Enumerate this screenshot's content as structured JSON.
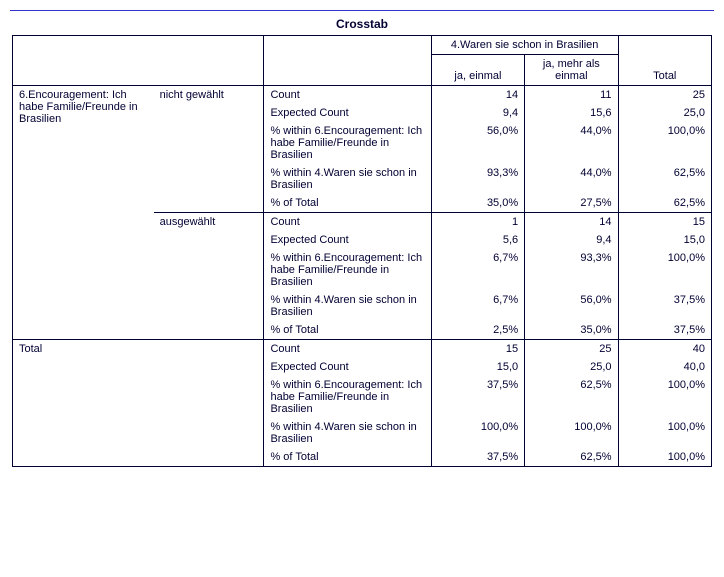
{
  "title": "Crosstab",
  "colvar": "4.Waren sie schon in Brasilien",
  "colcats": {
    "c1": "ja, einmal",
    "c2": "ja, mehr als einmal"
  },
  "totallabel": "Total",
  "rowvar": "6.Encouragement: Ich habe Familie/Freunde in Brasilien",
  "rowcats": {
    "r1": "nicht gewählt",
    "r2": "ausgewählt"
  },
  "stats": {
    "count": "Count",
    "exp": "Expected Count",
    "pwrow": "% within 6.Encouragement: Ich habe Familie/Freunde in Brasilien",
    "pwcol": "% within 4.Waren sie schon in Brasilien",
    "ptot": "% of Total"
  },
  "d": {
    "r1": {
      "count": {
        "c1": "14",
        "c2": "11",
        "t": "25"
      },
      "exp": {
        "c1": "9,4",
        "c2": "15,6",
        "t": "25,0"
      },
      "pwrow": {
        "c1": "56,0%",
        "c2": "44,0%",
        "t": "100,0%"
      },
      "pwcol": {
        "c1": "93,3%",
        "c2": "44,0%",
        "t": "62,5%"
      },
      "ptot": {
        "c1": "35,0%",
        "c2": "27,5%",
        "t": "62,5%"
      }
    },
    "r2": {
      "count": {
        "c1": "1",
        "c2": "14",
        "t": "15"
      },
      "exp": {
        "c1": "5,6",
        "c2": "9,4",
        "t": "15,0"
      },
      "pwrow": {
        "c1": "6,7%",
        "c2": "93,3%",
        "t": "100,0%"
      },
      "pwcol": {
        "c1": "6,7%",
        "c2": "56,0%",
        "t": "37,5%"
      },
      "ptot": {
        "c1": "2,5%",
        "c2": "35,0%",
        "t": "37,5%"
      }
    },
    "tot": {
      "count": {
        "c1": "15",
        "c2": "25",
        "t": "40"
      },
      "exp": {
        "c1": "15,0",
        "c2": "25,0",
        "t": "40,0"
      },
      "pwrow": {
        "c1": "37,5%",
        "c2": "62,5%",
        "t": "100,0%"
      },
      "pwcol": {
        "c1": "100,0%",
        "c2": "100,0%",
        "t": "100,0%"
      },
      "ptot": {
        "c1": "37,5%",
        "c2": "62,5%",
        "t": "100,0%"
      }
    }
  }
}
